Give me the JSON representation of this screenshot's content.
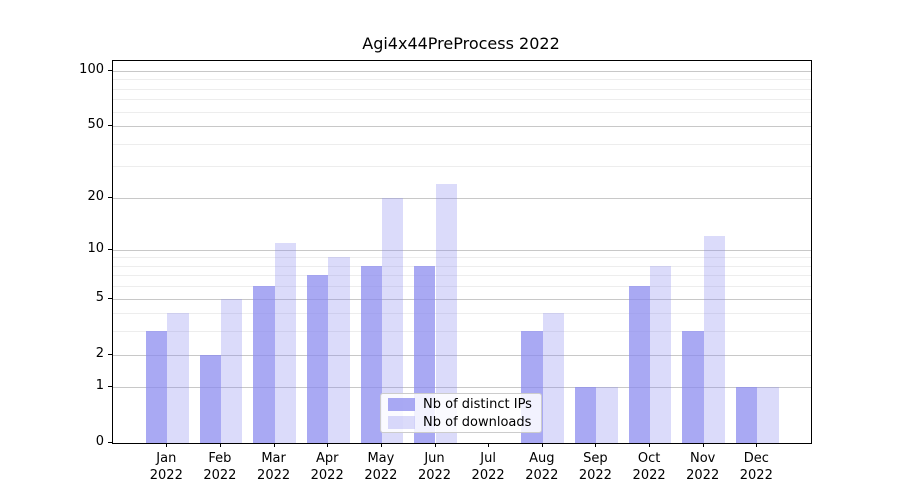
{
  "chart_data": {
    "type": "bar",
    "title": "Agi4x44PreProcess 2022",
    "categories": [
      "Jan",
      "Feb",
      "Mar",
      "Apr",
      "May",
      "Jun",
      "Jul",
      "Aug",
      "Sep",
      "Oct",
      "Nov",
      "Dec"
    ],
    "category_year": "2022",
    "series": [
      {
        "name": "Nb of distinct IPs",
        "color": "rgba(136,136,238,0.72)",
        "values": [
          3,
          2,
          6,
          7,
          8,
          8,
          0,
          3,
          1,
          6,
          3,
          1
        ]
      },
      {
        "name": "Nb of downloads",
        "color": "rgba(136,136,238,0.30)",
        "values": [
          4,
          5,
          11,
          9,
          20,
          24,
          0,
          4,
          1,
          8,
          12,
          1
        ]
      }
    ],
    "y_scale": "log1p",
    "y_ticks": [
      0,
      1,
      2,
      5,
      10,
      20,
      50,
      100
    ],
    "y_minor_gridlines": [
      3,
      4,
      6,
      7,
      8,
      9,
      30,
      40,
      60,
      70,
      80,
      90
    ],
    "ylim": [
      0,
      115
    ],
    "grid": true,
    "legend_position": "lower center",
    "colors": {
      "bar_base": "#8888ee",
      "major_grid": "#c8c8c8",
      "minor_grid": "#ededed",
      "axis": "#000000",
      "text": "#000000"
    }
  }
}
